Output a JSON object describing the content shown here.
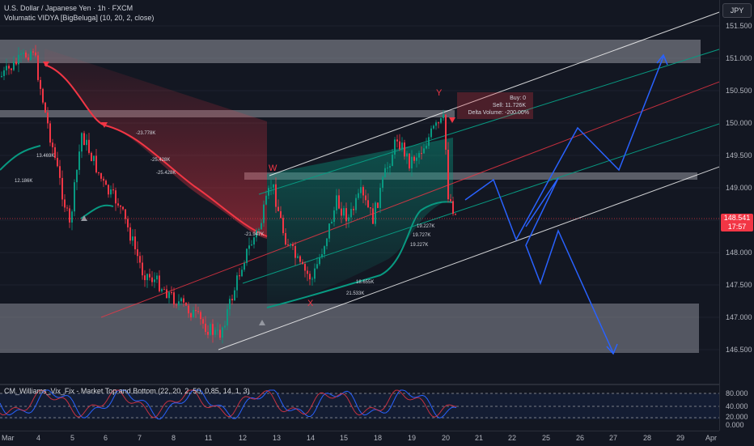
{
  "legend": {
    "symbol": "U.S. Dollar / Japanese Yen · 1h · FXCM",
    "indicator": "Volumatic VIDYA [BigBeluga] (10, 20, 2, close)"
  },
  "oscillator": {
    "label": "CM_Williams_Vix_Fix - Market Top and Bottom (22, 20, 2, 50, 0.85, 14, 1, 3)",
    "ticks": [
      "80.000",
      "40.000",
      "20.000",
      "0.000"
    ]
  },
  "price_axis": {
    "currency": "JPY",
    "ticks": [
      "151.500",
      "151.000",
      "150.500",
      "150.000",
      "149.500",
      "149.000",
      "148.000",
      "147.500",
      "147.000",
      "146.500"
    ],
    "last_price": "148.541",
    "countdown": "17:57",
    "last_price_color": "#f23645"
  },
  "time_axis": {
    "ticks": [
      "Mar",
      "4",
      "5",
      "6",
      "7",
      "8",
      "11",
      "12",
      "13",
      "14",
      "15",
      "18",
      "19",
      "20",
      "21",
      "22",
      "25",
      "26",
      "27",
      "28",
      "29",
      "Apr"
    ]
  },
  "annotations": {
    "volume_info": [
      "Buy: 0",
      "Sell: 11.726K",
      "Delta Volume: -200.00%"
    ],
    "labels": [
      "-23.778K",
      "-25.428K",
      "-25.428K",
      "13.469K",
      "12.186K",
      "-21.947K",
      "19.227K",
      "19.727K",
      "19.227K",
      "18.655K",
      "21.533K"
    ],
    "wave_w": "W",
    "wave_x": "X",
    "wave_y": "Y"
  },
  "colors": {
    "background": "#131722",
    "up_candle": "#089981",
    "down_candle": "#f23645",
    "projection": "#2962ff",
    "channel": "#ffffff"
  }
}
